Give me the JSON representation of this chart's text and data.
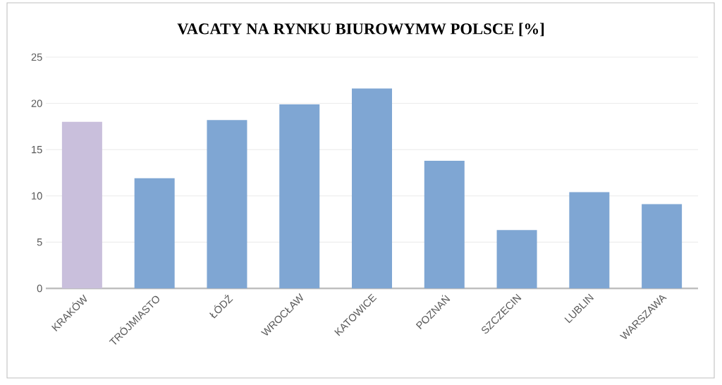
{
  "chart_data": {
    "type": "bar",
    "title": "VACATY NA RYNKU BIUROWYMW POLSCE [%]",
    "categories": [
      "KRAKÓW",
      "TRÓJMIASTO",
      "ŁÓDŹ",
      "WROCŁAW",
      "KATOWICE",
      "POZNAŃ",
      "SZCZECIN",
      "LUBLIN",
      "WARSZAWA"
    ],
    "values": [
      18.0,
      11.9,
      18.2,
      19.9,
      21.6,
      13.8,
      6.3,
      10.4,
      9.1
    ],
    "colors": [
      "#c9bfdc",
      "#7fa6d3",
      "#7fa6d3",
      "#7fa6d3",
      "#7fa6d3",
      "#7fa6d3",
      "#7fa6d3",
      "#7fa6d3",
      "#7fa6d3"
    ],
    "ylim": [
      0,
      25
    ],
    "yticks": [
      0,
      5,
      10,
      15,
      20,
      25
    ],
    "grid": "y"
  }
}
